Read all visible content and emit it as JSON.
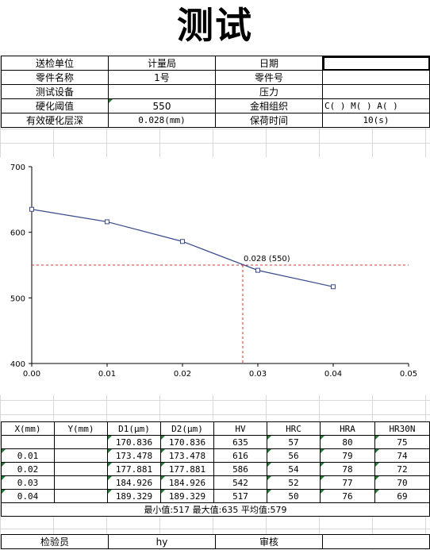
{
  "title": "测试",
  "info": {
    "unit_label": "送检单位",
    "unit_value": "计量局",
    "date_label": "日期",
    "date_value": "",
    "part_name_label": "零件名称",
    "part_name_value": "1号",
    "part_no_label": "零件号",
    "part_no_value": "",
    "device_label": "测试设备",
    "device_value": "",
    "pressure_label": "压力",
    "pressure_value": "",
    "threshold_label": "硬化阈值",
    "threshold_value": "550",
    "structure_label": "金相组织",
    "structure_value": "C(  )  M(  )  A(  )",
    "depth_label": "有效硬化层深",
    "depth_value": "0.028(mm)",
    "hold_label": "保荷时间",
    "hold_value": "10(s)"
  },
  "chart_data": {
    "type": "line",
    "x": [
      0.0,
      0.01,
      0.02,
      0.03,
      0.04
    ],
    "y": [
      635,
      616,
      586,
      542,
      517
    ],
    "xlim": [
      0.0,
      0.05
    ],
    "ylim": [
      400,
      700
    ],
    "xticks": [
      "0.00",
      "0.01",
      "0.02",
      "0.03",
      "0.04",
      "0.05"
    ],
    "yticks": [
      "400",
      "500",
      "600",
      "700"
    ],
    "threshold": 550,
    "depth": 0.028,
    "annotation": "0.028 (550)",
    "line_color": "#3b4a8c",
    "threshold_color": "#d9352a"
  },
  "table": {
    "headers": [
      "X(mm)",
      "Y(mm)",
      "D1(μm)",
      "D2(μm)",
      "HV",
      "HRC",
      "HRA",
      "HR30N"
    ],
    "rows": [
      [
        "",
        "",
        "170.836",
        "170.836",
        "635",
        "57",
        "80",
        "75"
      ],
      [
        "0.01",
        "",
        "173.478",
        "173.478",
        "616",
        "56",
        "79",
        "74"
      ],
      [
        "0.02",
        "",
        "177.881",
        "177.881",
        "586",
        "54",
        "78",
        "72"
      ],
      [
        "0.03",
        "",
        "184.926",
        "184.926",
        "542",
        "52",
        "77",
        "70"
      ],
      [
        "0.04",
        "",
        "189.329",
        "189.329",
        "517",
        "50",
        "76",
        "69"
      ]
    ],
    "stats": "最小值:517  最大值:635  平均值:579"
  },
  "footer": {
    "inspector_label": "检验员",
    "inspector_value": "hy",
    "review_label": "审核",
    "review_value": ""
  }
}
